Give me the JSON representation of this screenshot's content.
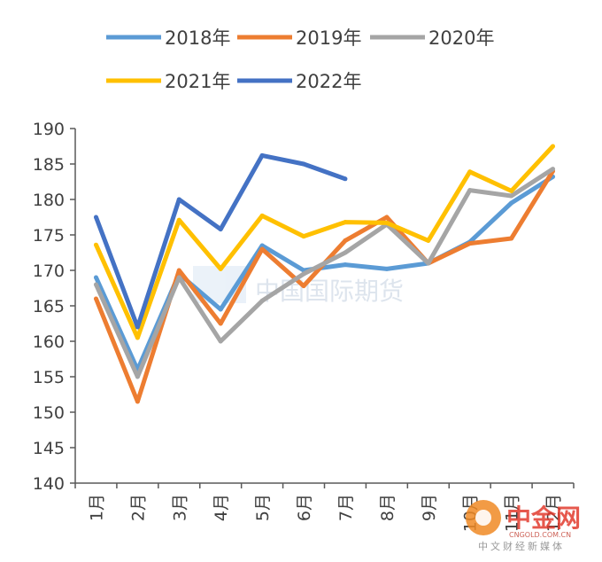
{
  "chart_data": {
    "type": "line",
    "categories": [
      "1月",
      "2月",
      "3月",
      "4月",
      "5月",
      "6月",
      "7月",
      "8月",
      "9月",
      "10月",
      "11月",
      "12月"
    ],
    "ylim": [
      140,
      190
    ],
    "yticks": [
      140,
      145,
      150,
      155,
      160,
      165,
      170,
      175,
      180,
      185,
      190
    ],
    "grid": false,
    "legend_position": "top",
    "series": [
      {
        "name": "2018年",
        "color": "#5B9BD5",
        "values": [
          169,
          156,
          169.5,
          164.5,
          173.5,
          170,
          170.8,
          170.2,
          171,
          174,
          179.5,
          183.2
        ]
      },
      {
        "name": "2019年",
        "color": "#ED7D31",
        "values": [
          166,
          151.5,
          170,
          162.5,
          173,
          167.8,
          174.2,
          177.5,
          171,
          173.8,
          174.5,
          184
        ]
      },
      {
        "name": "2020年",
        "color": "#A5A5A5",
        "values": [
          168,
          155,
          169,
          160,
          165.7,
          169.5,
          172.5,
          176.5,
          171,
          181.3,
          180.5,
          184.3
        ]
      },
      {
        "name": "2021年",
        "color": "#FFC000",
        "values": [
          173.6,
          160.5,
          177.1,
          170.2,
          177.7,
          174.8,
          176.8,
          176.7,
          174.2,
          183.9,
          181.2,
          187.5
        ]
      },
      {
        "name": "2022年",
        "color": "#4472C4",
        "values": [
          177.5,
          162,
          180,
          175.8,
          186.2,
          185,
          182.9,
          null,
          null,
          null,
          null,
          null
        ]
      }
    ]
  },
  "watermarks": {
    "center_text": "中国国际期货",
    "logo_text": "中金网",
    "logo_url": "CNGOLD.COM.CN",
    "logo_tagline": "中文财经新媒体"
  }
}
